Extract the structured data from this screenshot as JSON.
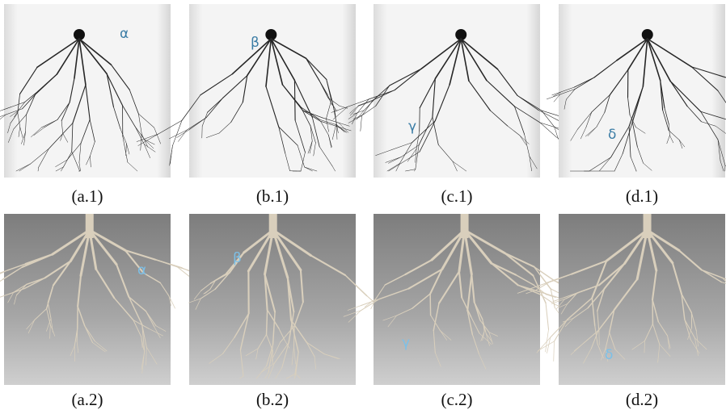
{
  "panels": [
    {
      "label": "α",
      "caption": "(a.1)"
    },
    {
      "label": "β",
      "caption": "(b.1)"
    },
    {
      "label": "γ",
      "caption": "(c.1)"
    },
    {
      "label": "δ",
      "caption": "(d.1)"
    },
    {
      "label": "α",
      "caption": "(a.2)"
    },
    {
      "label": "β",
      "caption": "(b.2)"
    },
    {
      "label": "γ",
      "caption": "(c.2)"
    },
    {
      "label": "δ",
      "caption": "(d.2)"
    }
  ]
}
